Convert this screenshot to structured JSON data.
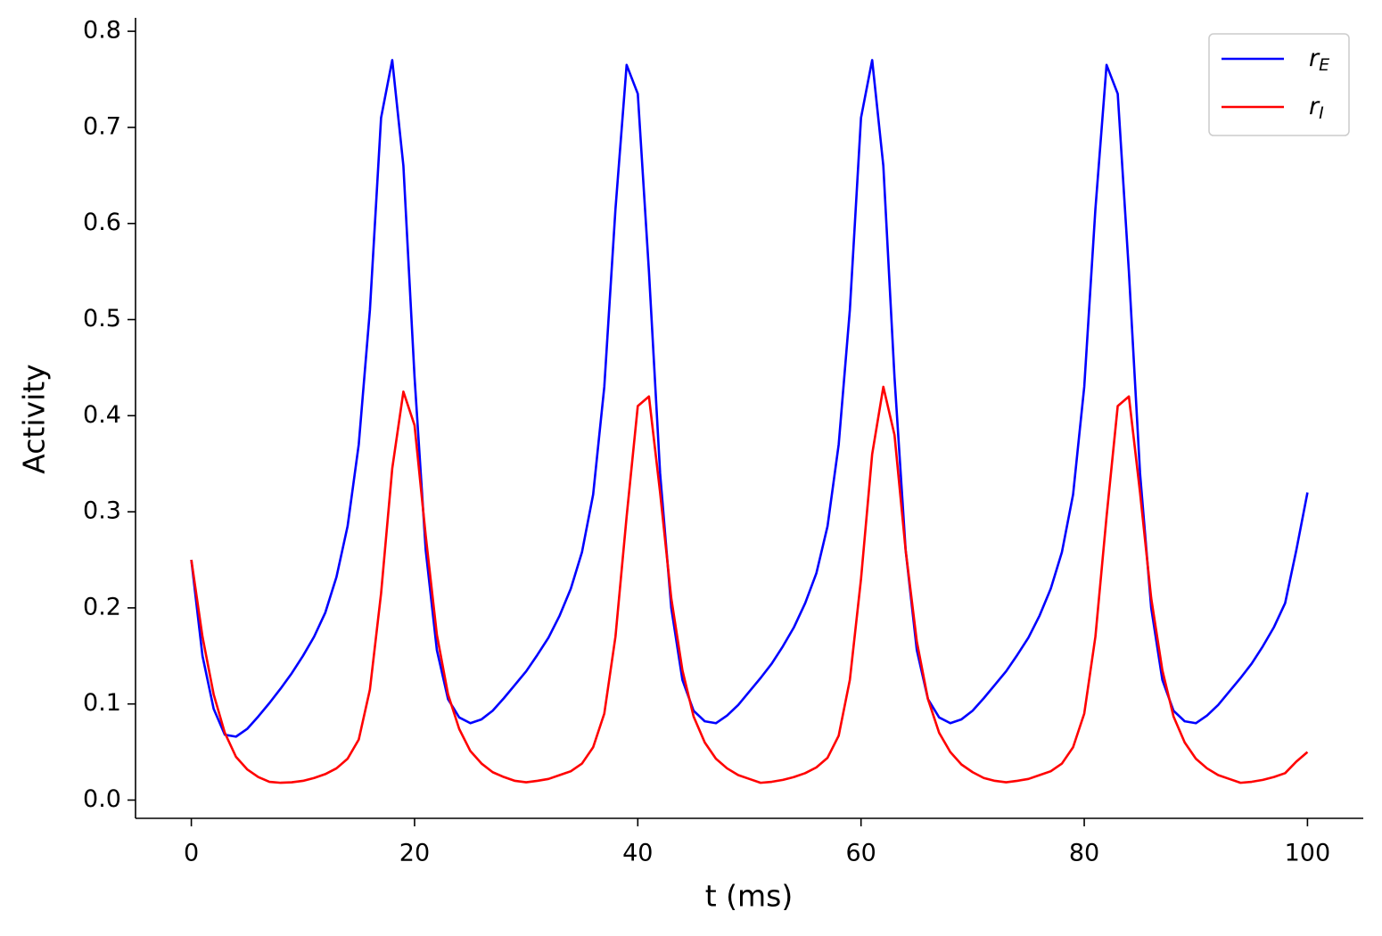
{
  "chart_data": {
    "type": "line",
    "xlabel": "t (ms)",
    "ylabel": "Activity",
    "x": [
      0,
      1,
      2,
      3,
      4,
      5,
      6,
      7,
      8,
      9,
      10,
      11,
      12,
      13,
      14,
      15,
      16,
      17,
      18,
      19,
      20,
      21,
      22,
      23,
      24,
      25,
      26,
      27,
      28,
      29,
      30,
      31,
      32,
      33,
      34,
      35,
      36,
      37,
      38,
      39,
      40,
      41,
      42,
      43,
      44,
      45,
      46,
      47,
      48,
      49,
      50,
      51,
      52,
      53,
      54,
      55,
      56,
      57,
      58,
      59,
      60,
      61,
      62,
      63,
      64,
      65,
      66,
      67,
      68,
      69,
      70,
      71,
      72,
      73,
      74,
      75,
      76,
      77,
      78,
      79,
      80,
      81,
      82,
      83,
      84,
      85,
      86,
      87,
      88,
      89,
      90,
      91,
      92,
      93,
      94,
      95,
      96,
      97,
      98,
      99,
      100
    ],
    "series": [
      {
        "name": "rE",
        "color": "#0000ff",
        "values": [
          0.25,
          0.15,
          0.095,
          0.068,
          0.066,
          0.074,
          0.087,
          0.101,
          0.116,
          0.132,
          0.15,
          0.17,
          0.195,
          0.232,
          0.285,
          0.37,
          0.51,
          0.71,
          0.77,
          0.66,
          0.44,
          0.26,
          0.156,
          0.105,
          0.086,
          0.08,
          0.084,
          0.093,
          0.106,
          0.12,
          0.134,
          0.151,
          0.169,
          0.192,
          0.22,
          0.258,
          0.318,
          0.43,
          0.615,
          0.765,
          0.735,
          0.55,
          0.34,
          0.2,
          0.125,
          0.093,
          0.082,
          0.08,
          0.088,
          0.099,
          0.113,
          0.127,
          0.142,
          0.16,
          0.18,
          0.205,
          0.236,
          0.285,
          0.37,
          0.51,
          0.71,
          0.77,
          0.66,
          0.44,
          0.26,
          0.156,
          0.105,
          0.086,
          0.08,
          0.084,
          0.093,
          0.106,
          0.12,
          0.134,
          0.151,
          0.169,
          0.192,
          0.22,
          0.258,
          0.318,
          0.43,
          0.615,
          0.765,
          0.735,
          0.55,
          0.34,
          0.2,
          0.125,
          0.093,
          0.082,
          0.08,
          0.088,
          0.099,
          0.113,
          0.127,
          0.142,
          0.16,
          0.18,
          0.205,
          0.26,
          0.32
        ]
      },
      {
        "name": "rI",
        "color": "#ff0000",
        "values": [
          0.25,
          0.17,
          0.11,
          0.07,
          0.045,
          0.032,
          0.024,
          0.019,
          0.018,
          0.0185,
          0.02,
          0.023,
          0.027,
          0.033,
          0.043,
          0.063,
          0.115,
          0.215,
          0.345,
          0.425,
          0.39,
          0.275,
          0.172,
          0.11,
          0.074,
          0.051,
          0.038,
          0.029,
          0.024,
          0.02,
          0.0185,
          0.02,
          0.022,
          0.026,
          0.03,
          0.038,
          0.055,
          0.09,
          0.17,
          0.295,
          0.41,
          0.42,
          0.32,
          0.21,
          0.135,
          0.087,
          0.06,
          0.043,
          0.033,
          0.026,
          0.022,
          0.018,
          0.019,
          0.021,
          0.024,
          0.028,
          0.034,
          0.044,
          0.067,
          0.125,
          0.23,
          0.36,
          0.43,
          0.38,
          0.26,
          0.165,
          0.105,
          0.07,
          0.05,
          0.037,
          0.029,
          0.023,
          0.02,
          0.0185,
          0.02,
          0.022,
          0.026,
          0.03,
          0.038,
          0.055,
          0.09,
          0.17,
          0.295,
          0.41,
          0.42,
          0.32,
          0.21,
          0.135,
          0.087,
          0.06,
          0.043,
          0.033,
          0.026,
          0.022,
          0.018,
          0.019,
          0.021,
          0.024,
          0.028,
          0.04,
          0.05
        ]
      }
    ],
    "xlim": [
      -5,
      105
    ],
    "ylim": [
      -0.019,
      0.814
    ],
    "xticks": [
      0,
      20,
      40,
      60,
      80,
      100
    ],
    "yticks": [
      {
        "value": 0,
        "label": "0.0"
      },
      0.1,
      0.2,
      0.3,
      0.4,
      0.5,
      0.6,
      0.7,
      0.8
    ],
    "grid": false,
    "legend": "upper right"
  }
}
